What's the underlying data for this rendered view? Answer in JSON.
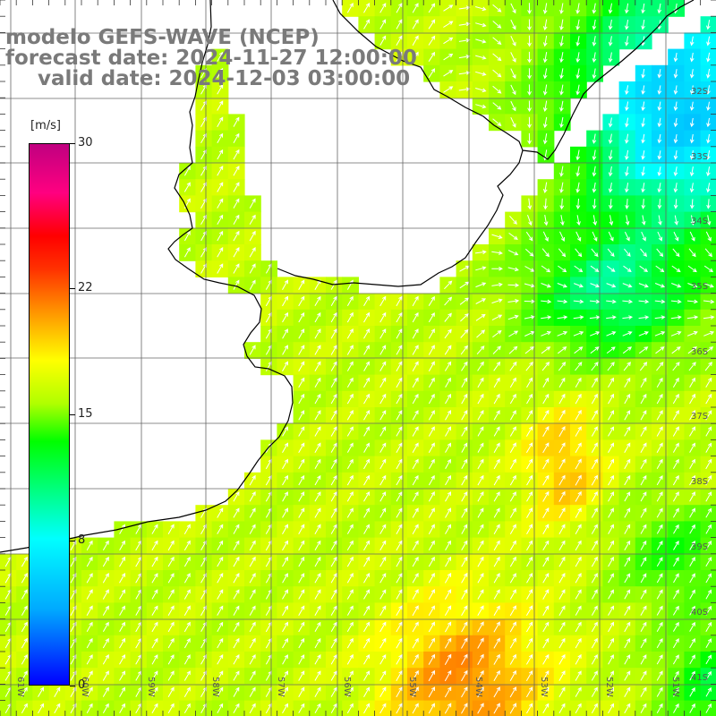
{
  "title": {
    "line1": "modelo GEFS-WAVE (NCEP)",
    "line2": "forecast date: 2024-11-27 12:00:00",
    "line3": "valid date: 2024-12-03 03:00:00"
  },
  "colorbar": {
    "unit": "[m/s]",
    "min": 0,
    "max": 30,
    "ticks": [
      {
        "value": 30,
        "label": "30"
      },
      {
        "value": 22,
        "label": "22"
      },
      {
        "value": 15,
        "label": "15"
      },
      {
        "value": 8,
        "label": "8"
      },
      {
        "value": 0,
        "label": "0"
      }
    ],
    "colors": [
      "#0000ff",
      "#00aaff",
      "#00ffff",
      "#00ff00",
      "#b0ff00",
      "#ffff00",
      "#ffa000",
      "#ff3000",
      "#ff0000",
      "#ff0080",
      "#c00080"
    ]
  },
  "map": {
    "lon_labels": [
      "61W",
      "60W",
      "59W",
      "58W",
      "57W",
      "56W",
      "55W",
      "54W",
      "53W",
      "52W",
      "51W"
    ],
    "lat_labels": [
      "32S",
      "33S",
      "34S",
      "35S",
      "36S",
      "37S",
      "38S",
      "39S",
      "40S",
      "41S"
    ],
    "field_name": "wind speed",
    "arrow_direction": "northeast to north-northeast in south, southward in north-east"
  }
}
